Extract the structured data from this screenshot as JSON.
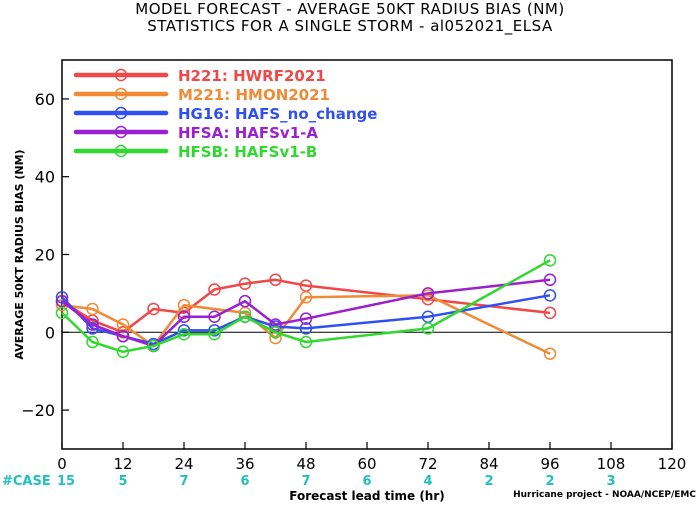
{
  "chart_data": {
    "type": "line",
    "title": "MODEL FORECAST - AVERAGE 50KT RADIUS BIAS (NM)",
    "subtitle": "STATISTICS FOR A SINGLE STORM - al052021_ELSA",
    "xlabel": "Forecast lead time (hr)",
    "ylabel": "AVERAGE 50KT RADIUS BIAS (NM)",
    "xlim": [
      0,
      120
    ],
    "ylim": [
      -30,
      70
    ],
    "x_ticks": [
      0,
      12,
      24,
      36,
      48,
      60,
      72,
      84,
      96,
      108,
      120
    ],
    "y_ticks": [
      -20,
      0,
      20,
      40,
      60
    ],
    "grid": false,
    "legend_position": "top-left",
    "series": [
      {
        "name": "H221:  HWRF2021",
        "color": "#f04848",
        "x": [
          0,
          6,
          12,
          18,
          24,
          30,
          36,
          42,
          48,
          72,
          96
        ],
        "values": [
          8,
          3,
          0,
          6,
          5,
          11,
          12.5,
          13.5,
          12,
          8.5,
          5
        ]
      },
      {
        "name": "M221:  HMON2021",
        "color": "#f08a35",
        "x": [
          0,
          6,
          12,
          18,
          24,
          36,
          42,
          48,
          72,
          96
        ],
        "values": [
          7,
          6,
          2,
          -3.5,
          7,
          5,
          -1.5,
          9,
          9.5,
          -5.5
        ]
      },
      {
        "name": "HG16:  HAFS_no_change",
        "color": "#3050f0",
        "x": [
          0,
          6,
          12,
          18,
          24,
          30,
          36,
          42,
          48,
          72,
          96
        ],
        "values": [
          9,
          1,
          -1,
          -3,
          0.5,
          0.5,
          4,
          1.5,
          1,
          4,
          9.5
        ]
      },
      {
        "name": "HFSA:  HAFSv1-A",
        "color": "#9a20d0",
        "x": [
          0,
          6,
          12,
          18,
          24,
          30,
          36,
          42,
          48,
          72,
          96
        ],
        "values": [
          8,
          2,
          -1,
          -3.5,
          4,
          4,
          8,
          2,
          3.5,
          10,
          13.5
        ]
      },
      {
        "name": "HFSB:  HAFSv1-B",
        "color": "#30d830",
        "x": [
          0,
          6,
          12,
          18,
          24,
          30,
          36,
          42,
          48,
          72,
          96
        ],
        "values": [
          5,
          -2.5,
          -5,
          -3.5,
          -0.5,
          -0.5,
          4,
          0,
          -2.5,
          1,
          18.5
        ]
      }
    ],
    "cases_label": "#CASE",
    "cases_color": "#20c0c0",
    "cases": [
      {
        "x": 0,
        "n": "15"
      },
      {
        "x": 12,
        "n": "5"
      },
      {
        "x": 24,
        "n": "7"
      },
      {
        "x": 36,
        "n": "6"
      },
      {
        "x": 48,
        "n": "7"
      },
      {
        "x": 60,
        "n": "6"
      },
      {
        "x": 72,
        "n": "4"
      },
      {
        "x": 84,
        "n": "2"
      },
      {
        "x": 96,
        "n": "2"
      },
      {
        "x": 108,
        "n": "3"
      }
    ]
  },
  "credit": "Hurricane project - NOAA/NCEP/EMC"
}
